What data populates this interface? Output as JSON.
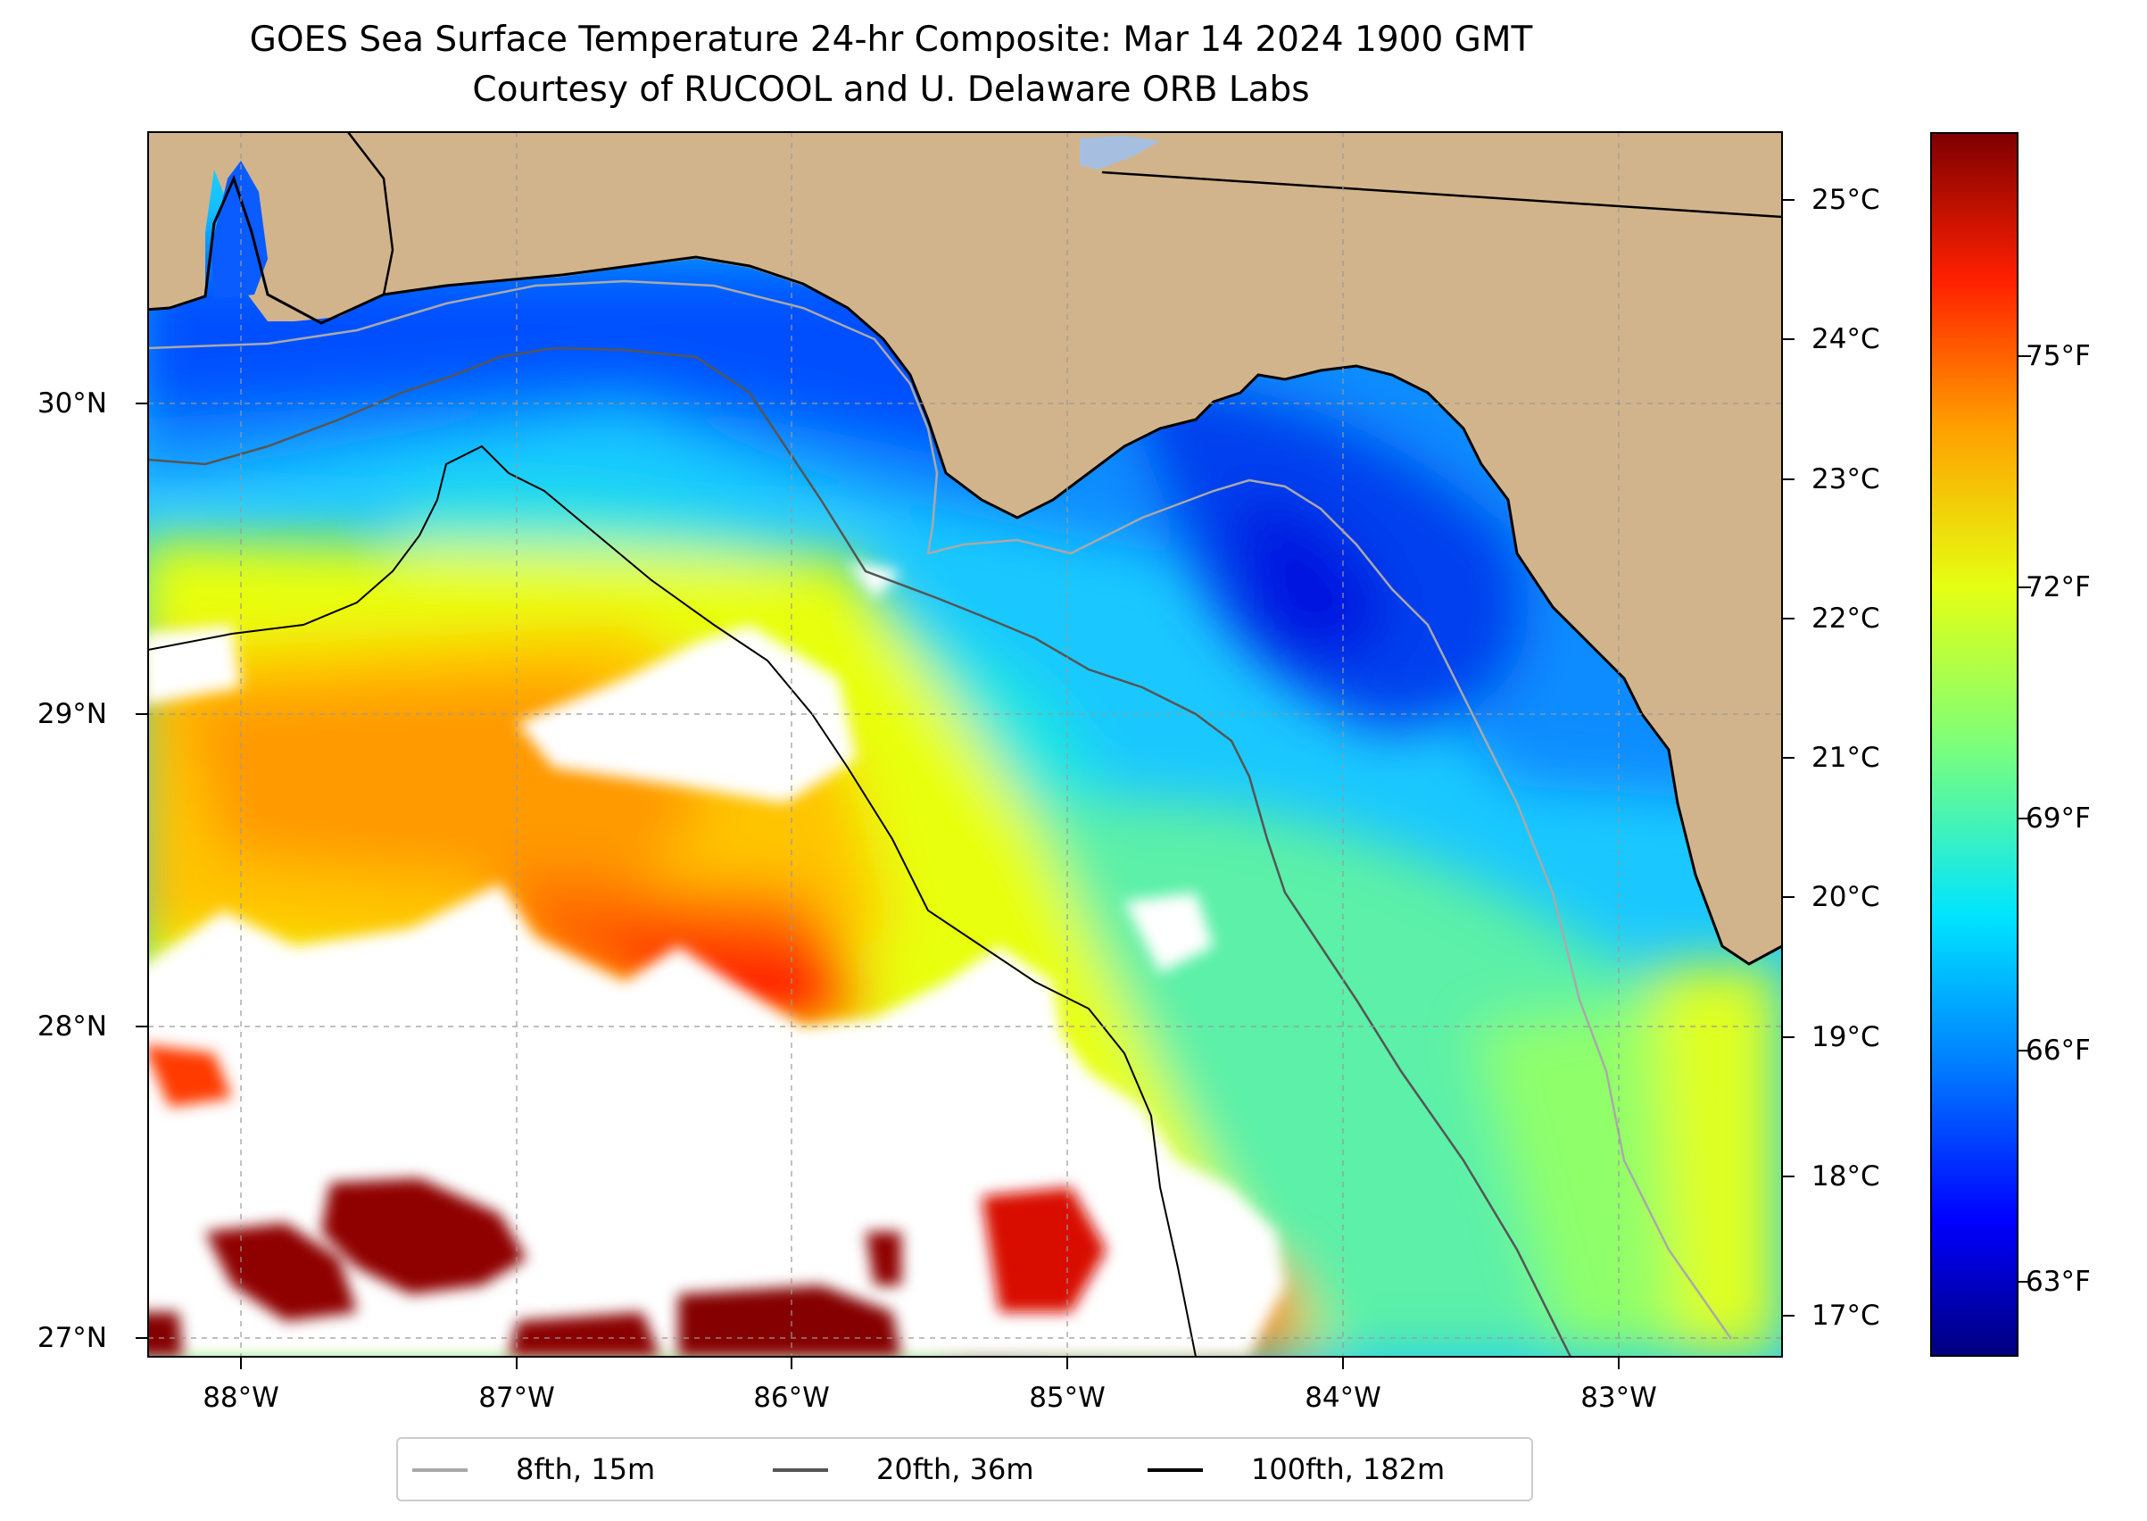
{
  "title": "GOES Sea Surface Temperature 24-hr Composite: Mar 14 2024 1900 GMT",
  "subtitle": "Courtesy of RUCOOL and U. Delaware ORB Labs",
  "map": {
    "lat_labels": [
      "30°N",
      "29°N",
      "28°N",
      "27°N"
    ],
    "lon_labels": [
      "88°W",
      "87°W",
      "86°W",
      "85°W",
      "84°W",
      "83°W"
    ],
    "land_color": "#d2b48c",
    "no_data_color": "#ffffff",
    "colormap": "jet"
  },
  "colorbar": {
    "celsius_labels": [
      "25°C",
      "24°C",
      "23°C",
      "22°C",
      "21°C",
      "20°C",
      "19°C",
      "18°C",
      "17°C"
    ],
    "fahrenheit_labels": [
      "75°F",
      "72°F",
      "69°F",
      "66°F",
      "63°F"
    ]
  },
  "legend": {
    "items": [
      {
        "label": "8fth, 15m",
        "color": "#a9a9a9"
      },
      {
        "label": "20fth, 36m",
        "color": "#555555"
      },
      {
        "label": "100fth, 182m",
        "color": "#000000"
      }
    ]
  }
}
